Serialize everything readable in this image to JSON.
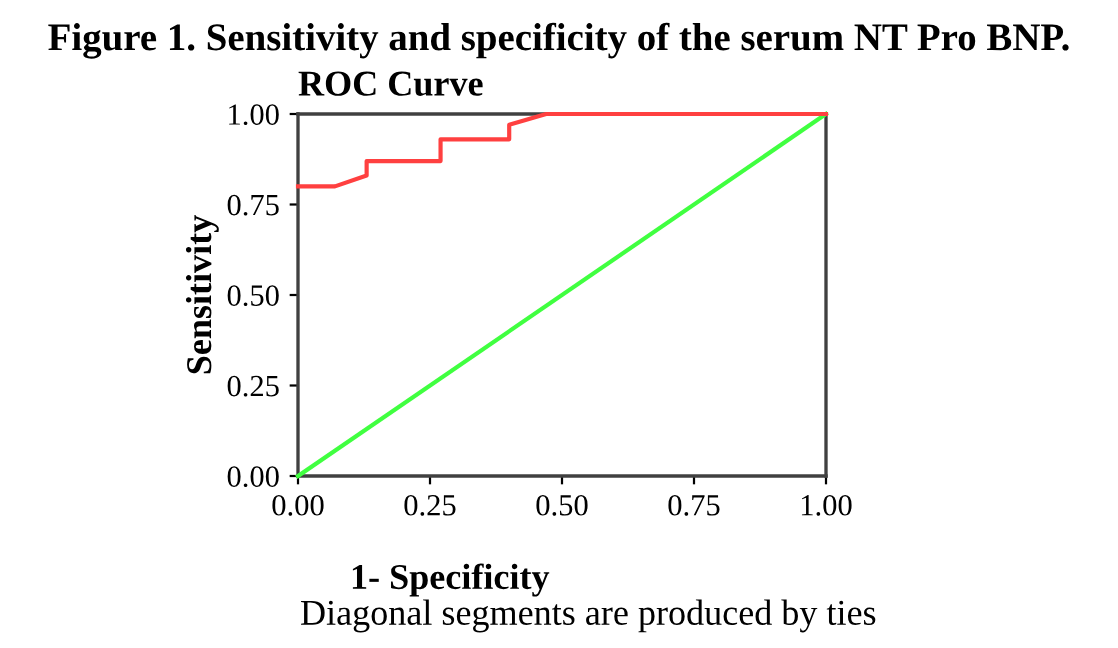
{
  "chart_data": {
    "type": "line",
    "title": "Figure 1. Sensitivity and specificity of the serum NT Pro BNP.",
    "subtitle": "ROC Curve",
    "xlabel": "1- Specificity",
    "ylabel": "Sensitivity",
    "annotations": [
      "Diagonal segments are produced by ties"
    ],
    "series": [
      {
        "color": "#ff4040",
        "x": [
          0,
          0.07,
          0.13,
          0.13,
          0.27,
          0.27,
          0.4,
          0.4,
          0.47,
          1
        ],
        "values": [
          0.8,
          0.8,
          0.83,
          0.87,
          0.87,
          0.93,
          0.93,
          0.97,
          1,
          1
        ]
      },
      {
        "color": "#40ff40",
        "x": [
          0,
          1
        ],
        "values": [
          0,
          1
        ]
      }
    ],
    "xlim": [
      0,
      1
    ],
    "ylim": [
      0,
      1
    ],
    "xticks": [
      {
        "value": 0,
        "label": "0.00"
      },
      {
        "value": 0.25,
        "label": "0.25"
      },
      {
        "value": 0.5,
        "label": "0.50"
      },
      {
        "value": 0.75,
        "label": "0.75"
      },
      {
        "value": 1,
        "label": "1.00"
      }
    ],
    "yticks": [
      {
        "value": 0,
        "label": "0.00"
      },
      {
        "value": 0.25,
        "label": "0.25"
      },
      {
        "value": 0.5,
        "label": "0.50"
      },
      {
        "value": 0.75,
        "label": "0.75"
      },
      {
        "value": 1,
        "label": "1.00"
      }
    ],
    "grid": false
  }
}
